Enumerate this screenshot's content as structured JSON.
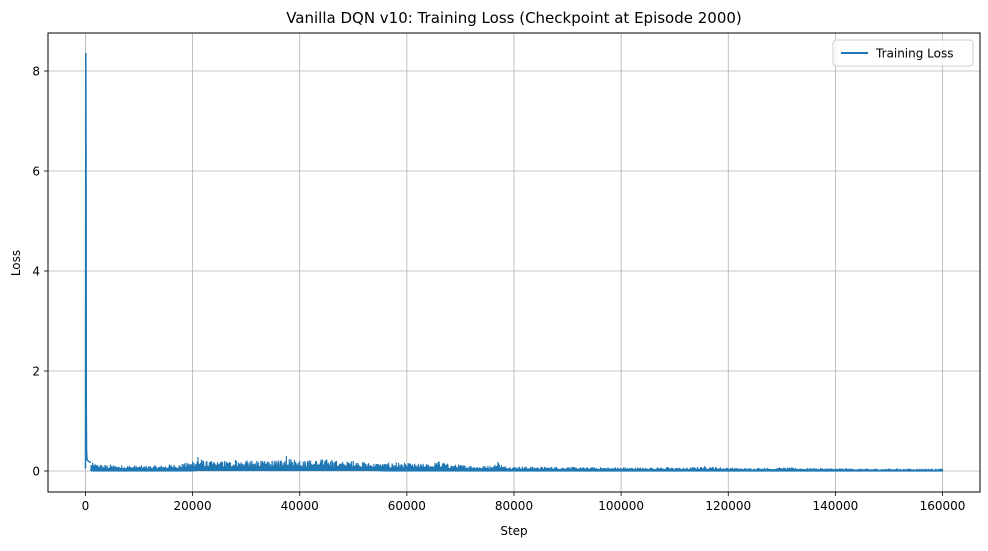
{
  "chart_data": {
    "type": "line",
    "title": "Vanilla DQN v10: Training Loss (Checkpoint at Episode 2000)",
    "xlabel": "Step",
    "ylabel": "Loss",
    "xlim": [
      -7000,
      167000
    ],
    "ylim": [
      -0.42,
      8.76
    ],
    "x_ticks": [
      0,
      20000,
      40000,
      60000,
      80000,
      100000,
      120000,
      140000,
      160000
    ],
    "x_tick_labels": [
      "0",
      "20000",
      "40000",
      "60000",
      "80000",
      "100000",
      "120000",
      "140000",
      "160000"
    ],
    "y_ticks": [
      0,
      2,
      4,
      6,
      8
    ],
    "y_tick_labels": [
      "0",
      "2",
      "4",
      "6",
      "8"
    ],
    "grid": true,
    "legend_position": "top-right",
    "series": [
      {
        "name": "Training Loss",
        "color": "#1f77b4",
        "x": [
          0,
          50,
          100,
          150,
          200,
          300,
          500,
          800,
          1000,
          1500,
          2000,
          3000,
          4000,
          5000,
          6000,
          8000,
          10000,
          12000,
          14000,
          16000,
          18000,
          20000,
          21000,
          22000,
          24000,
          26000,
          28000,
          30000,
          32000,
          34000,
          36000,
          37500,
          39000,
          40000,
          42000,
          44000,
          46000,
          48000,
          50000,
          52000,
          54000,
          56000,
          58000,
          60000,
          62000,
          64000,
          66000,
          68000,
          70000,
          72000,
          74000,
          76000,
          77000,
          78000,
          80000,
          84000,
          88000,
          92000,
          96000,
          100000,
          104000,
          108000,
          112000,
          116000,
          120000,
          124000,
          128000,
          132000,
          136000,
          140000,
          144000,
          148000,
          152000,
          156000,
          160000
        ],
        "y_high": [
          0.05,
          8.35,
          6.5,
          1.2,
          0.4,
          0.22,
          0.2,
          0.18,
          0.17,
          0.15,
          0.14,
          0.13,
          0.12,
          0.12,
          0.11,
          0.11,
          0.1,
          0.1,
          0.11,
          0.13,
          0.14,
          0.19,
          0.28,
          0.2,
          0.18,
          0.2,
          0.22,
          0.2,
          0.2,
          0.19,
          0.21,
          0.3,
          0.22,
          0.2,
          0.21,
          0.23,
          0.22,
          0.18,
          0.2,
          0.17,
          0.16,
          0.15,
          0.17,
          0.15,
          0.14,
          0.14,
          0.19,
          0.13,
          0.12,
          0.11,
          0.1,
          0.1,
          0.18,
          0.1,
          0.09,
          0.08,
          0.08,
          0.07,
          0.07,
          0.07,
          0.06,
          0.07,
          0.06,
          0.09,
          0.06,
          0.05,
          0.06,
          0.06,
          0.05,
          0.05,
          0.04,
          0.04,
          0.04,
          0.04,
          0.04
        ],
        "y_low": [
          0.0,
          0.0,
          0.0,
          0.0,
          0.0,
          0.0,
          0.0,
          0.0,
          0.0,
          0.0,
          0.0,
          0.0,
          0.0,
          0.0,
          0.0,
          0.0,
          0.0,
          0.0,
          0.0,
          0.0,
          0.0,
          0.0,
          0.01,
          0.01,
          0.01,
          0.01,
          0.01,
          0.01,
          0.01,
          0.01,
          0.01,
          0.01,
          0.01,
          0.01,
          0.01,
          0.01,
          0.01,
          0.01,
          0.01,
          0.01,
          0.01,
          0.0,
          0.0,
          0.0,
          0.0,
          0.0,
          0.0,
          0.0,
          0.0,
          0.0,
          0.0,
          0.0,
          0.0,
          0.0,
          0.0,
          0.0,
          0.0,
          0.0,
          0.0,
          0.0,
          0.0,
          0.0,
          0.0,
          0.0,
          0.0,
          0.0,
          0.0,
          0.0,
          0.0,
          0.0,
          0.0,
          0.0,
          0.0,
          0.0,
          0.0
        ]
      }
    ]
  }
}
